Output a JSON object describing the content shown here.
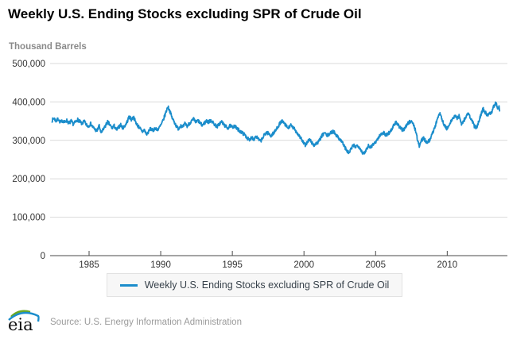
{
  "header": {
    "title": "Weekly U.S. Ending Stocks excluding SPR of Crude Oil",
    "units_label": "Thousand Barrels"
  },
  "legend": {
    "label": "Weekly U.S. Ending Stocks excluding SPR of Crude Oil",
    "swatch_color": "#1b8dcb"
  },
  "footer": {
    "logo": "eia",
    "source": "Source: U.S. Energy Information Administration"
  },
  "colors": {
    "line": "#1b8dcb",
    "gridline": "#d9d9d9",
    "axis": "#4a4a4a",
    "tick_text": "#333333"
  },
  "chart_data": {
    "type": "line",
    "title": "Weekly U.S. Ending Stocks excluding SPR of Crude Oil",
    "ylabel": "Thousand Barrels",
    "xlabel": "",
    "grid": true,
    "legend_position": "bottom-center",
    "x_range": [
      1982.28,
      2014.2
    ],
    "y_range": [
      0,
      500000
    ],
    "x_ticks": [
      {
        "v": 1985,
        "label": "1985"
      },
      {
        "v": 1990,
        "label": "1990"
      },
      {
        "v": 1995,
        "label": "1995"
      },
      {
        "v": 2000,
        "label": "2000"
      },
      {
        "v": 2005,
        "label": "2005"
      },
      {
        "v": 2010,
        "label": "2010"
      }
    ],
    "y_ticks": [
      {
        "v": 0,
        "label": "0"
      },
      {
        "v": 100000,
        "label": "100,000"
      },
      {
        "v": 200000,
        "label": "200,000"
      },
      {
        "v": 300000,
        "label": "300,000"
      },
      {
        "v": 400000,
        "label": "400,000"
      },
      {
        "v": 500000,
        "label": "500,000"
      }
    ],
    "series": [
      {
        "name": "Weekly U.S. Ending Stocks excluding SPR of Crude Oil",
        "color": "#1b8dcb",
        "jitter": {
          "seed": 7,
          "amplitude": 4500,
          "step_years": 0.019
        },
        "anchors": [
          [
            1982.42,
            352000.0
          ],
          [
            1982.55,
            358000.0
          ],
          [
            1982.7,
            350000.0
          ],
          [
            1982.85,
            356000.0
          ],
          [
            1983.0,
            346000.0
          ],
          [
            1983.15,
            352000.0
          ],
          [
            1983.3,
            347000.0
          ],
          [
            1983.45,
            352000.0
          ],
          [
            1983.6,
            344000.0
          ],
          [
            1983.75,
            350000.0
          ],
          [
            1983.9,
            342000.0
          ],
          [
            1984.05,
            348000.0
          ],
          [
            1984.2,
            354000.0
          ],
          [
            1984.35,
            349000.0
          ],
          [
            1984.5,
            343000.0
          ],
          [
            1984.65,
            350000.0
          ],
          [
            1984.8,
            341000.0
          ],
          [
            1984.95,
            336000.0
          ],
          [
            1985.1,
            344000.0
          ],
          [
            1985.25,
            335000.0
          ],
          [
            1985.4,
            329000.0
          ],
          [
            1985.55,
            324000.0
          ],
          [
            1985.7,
            338000.0
          ],
          [
            1985.85,
            318000.0
          ],
          [
            1986.0,
            330000.0
          ],
          [
            1986.15,
            338000.0
          ],
          [
            1986.3,
            348000.0
          ],
          [
            1986.45,
            340000.0
          ],
          [
            1986.6,
            332000.0
          ],
          [
            1986.75,
            338000.0
          ],
          [
            1986.9,
            327000.0
          ],
          [
            1987.05,
            333000.0
          ],
          [
            1987.2,
            341000.0
          ],
          [
            1987.35,
            332000.0
          ],
          [
            1987.5,
            338000.0
          ],
          [
            1987.65,
            348000.0
          ],
          [
            1987.8,
            362000.0
          ],
          [
            1987.95,
            354000.0
          ],
          [
            1988.1,
            361000.0
          ],
          [
            1988.25,
            348000.0
          ],
          [
            1988.4,
            338000.0
          ],
          [
            1988.55,
            332000.0
          ],
          [
            1988.7,
            321000.0
          ],
          [
            1988.85,
            328000.0
          ],
          [
            1989.0,
            316000.0
          ],
          [
            1989.15,
            322000.0
          ],
          [
            1989.3,
            331000.0
          ],
          [
            1989.45,
            325000.0
          ],
          [
            1989.6,
            332000.0
          ],
          [
            1989.75,
            327000.0
          ],
          [
            1989.9,
            333000.0
          ],
          [
            1990.05,
            342000.0
          ],
          [
            1990.2,
            355000.0
          ],
          [
            1990.35,
            372000.0
          ],
          [
            1990.5,
            388000.0
          ],
          [
            1990.65,
            375000.0
          ],
          [
            1990.8,
            358000.0
          ],
          [
            1990.95,
            348000.0
          ],
          [
            1991.1,
            336000.0
          ],
          [
            1991.25,
            330000.0
          ],
          [
            1991.4,
            340000.0
          ],
          [
            1991.55,
            334000.0
          ],
          [
            1991.7,
            344000.0
          ],
          [
            1991.85,
            337000.0
          ],
          [
            1992.0,
            344000.0
          ],
          [
            1992.15,
            350000.0
          ],
          [
            1992.3,
            355000.0
          ],
          [
            1992.45,
            347000.0
          ],
          [
            1992.6,
            352000.0
          ],
          [
            1992.75,
            345000.0
          ],
          [
            1992.9,
            339000.0
          ],
          [
            1993.05,
            345000.0
          ],
          [
            1993.2,
            351000.0
          ],
          [
            1993.35,
            347000.0
          ],
          [
            1993.5,
            353000.0
          ],
          [
            1993.65,
            346000.0
          ],
          [
            1993.8,
            340000.0
          ],
          [
            1993.95,
            336000.0
          ],
          [
            1994.1,
            343000.0
          ],
          [
            1994.25,
            349000.0
          ],
          [
            1994.4,
            341000.0
          ],
          [
            1994.55,
            336000.0
          ],
          [
            1994.7,
            332000.0
          ],
          [
            1994.85,
            338000.0
          ],
          [
            1995.0,
            334000.0
          ],
          [
            1995.15,
            338000.0
          ],
          [
            1995.3,
            331000.0
          ],
          [
            1995.45,
            327000.0
          ],
          [
            1995.6,
            322000.0
          ],
          [
            1995.75,
            318000.0
          ],
          [
            1995.9,
            313000.0
          ],
          [
            1996.05,
            306000.0
          ],
          [
            1996.2,
            299000.0
          ],
          [
            1996.35,
            309000.0
          ],
          [
            1996.5,
            303000.0
          ],
          [
            1996.65,
            311000.0
          ],
          [
            1996.8,
            304000.0
          ],
          [
            1996.95,
            297000.0
          ],
          [
            1997.1,
            305000.0
          ],
          [
            1997.25,
            315000.0
          ],
          [
            1997.4,
            321000.0
          ],
          [
            1997.55,
            317000.0
          ],
          [
            1997.7,
            312000.0
          ],
          [
            1997.85,
            318000.0
          ],
          [
            1998.0,
            324000.0
          ],
          [
            1998.15,
            334000.0
          ],
          [
            1998.3,
            343000.0
          ],
          [
            1998.45,
            350000.0
          ],
          [
            1998.6,
            345000.0
          ],
          [
            1998.75,
            338000.0
          ],
          [
            1998.9,
            331000.0
          ],
          [
            1999.05,
            340000.0
          ],
          [
            1999.2,
            334000.0
          ],
          [
            1999.35,
            329000.0
          ],
          [
            1999.5,
            321000.0
          ],
          [
            1999.65,
            313000.0
          ],
          [
            1999.8,
            305000.0
          ],
          [
            1999.95,
            294000.0
          ],
          [
            2000.1,
            287000.0
          ],
          [
            2000.25,
            297000.0
          ],
          [
            2000.4,
            302000.0
          ],
          [
            2000.55,
            294000.0
          ],
          [
            2000.7,
            287000.0
          ],
          [
            2000.85,
            292000.0
          ],
          [
            2001.0,
            295000.0
          ],
          [
            2001.15,
            305000.0
          ],
          [
            2001.3,
            314000.0
          ],
          [
            2001.45,
            320000.0
          ],
          [
            2001.6,
            312000.0
          ],
          [
            2001.75,
            316000.0
          ],
          [
            2001.9,
            320000.0
          ],
          [
            2002.05,
            324000.0
          ],
          [
            2002.2,
            317000.0
          ],
          [
            2002.35,
            309000.0
          ],
          [
            2002.5,
            303000.0
          ],
          [
            2002.65,
            297000.0
          ],
          [
            2002.8,
            286000.0
          ],
          [
            2003.0,
            272000.0
          ],
          [
            2003.15,
            267000.0
          ],
          [
            2003.3,
            279000.0
          ],
          [
            2003.45,
            287000.0
          ],
          [
            2003.6,
            283000.0
          ],
          [
            2003.75,
            288000.0
          ],
          [
            2003.9,
            280000.0
          ],
          [
            2004.05,
            270000.0
          ],
          [
            2004.2,
            264000.0
          ],
          [
            2004.35,
            277000.0
          ],
          [
            2004.5,
            287000.0
          ],
          [
            2004.65,
            282000.0
          ],
          [
            2004.8,
            289000.0
          ],
          [
            2004.95,
            294000.0
          ],
          [
            2005.1,
            301000.0
          ],
          [
            2005.25,
            310000.0
          ],
          [
            2005.4,
            317000.0
          ],
          [
            2005.55,
            321000.0
          ],
          [
            2005.7,
            313000.0
          ],
          [
            2005.85,
            317000.0
          ],
          [
            2006.0,
            322000.0
          ],
          [
            2006.15,
            330000.0
          ],
          [
            2006.3,
            341000.0
          ],
          [
            2006.45,
            347000.0
          ],
          [
            2006.6,
            338000.0
          ],
          [
            2006.75,
            331000.0
          ],
          [
            2006.9,
            326000.0
          ],
          [
            2007.05,
            333000.0
          ],
          [
            2007.2,
            342000.0
          ],
          [
            2007.35,
            348000.0
          ],
          [
            2007.5,
            351000.0
          ],
          [
            2007.65,
            340000.0
          ],
          [
            2007.8,
            325000.0
          ],
          [
            2007.95,
            297000.0
          ],
          [
            2008.05,
            285000.0
          ],
          [
            2008.2,
            300000.0
          ],
          [
            2008.35,
            306000.0
          ],
          [
            2008.5,
            298000.0
          ],
          [
            2008.65,
            295000.0
          ],
          [
            2008.8,
            303000.0
          ],
          [
            2008.95,
            316000.0
          ],
          [
            2009.1,
            332000.0
          ],
          [
            2009.25,
            347000.0
          ],
          [
            2009.4,
            366000.0
          ],
          [
            2009.5,
            372000.0
          ],
          [
            2009.65,
            352000.0
          ],
          [
            2009.8,
            340000.0
          ],
          [
            2009.95,
            330000.0
          ],
          [
            2010.1,
            336000.0
          ],
          [
            2010.25,
            348000.0
          ],
          [
            2010.4,
            358000.0
          ],
          [
            2010.55,
            364000.0
          ],
          [
            2010.7,
            357000.0
          ],
          [
            2010.85,
            364000.0
          ],
          [
            2011.0,
            342000.0
          ],
          [
            2011.15,
            350000.0
          ],
          [
            2011.3,
            362000.0
          ],
          [
            2011.45,
            370000.0
          ],
          [
            2011.6,
            359000.0
          ],
          [
            2011.75,
            350000.0
          ],
          [
            2011.9,
            336000.0
          ],
          [
            2012.05,
            333000.0
          ],
          [
            2012.2,
            350000.0
          ],
          [
            2012.35,
            367000.0
          ],
          [
            2012.5,
            382000.0
          ],
          [
            2012.65,
            373000.0
          ],
          [
            2012.8,
            366000.0
          ],
          [
            2012.95,
            371000.0
          ],
          [
            2013.1,
            373000.0
          ],
          [
            2013.2,
            385000.0
          ],
          [
            2013.3,
            393000.0
          ],
          [
            2013.4,
            398000.0
          ],
          [
            2013.48,
            387000.0
          ],
          [
            2013.55,
            381000.0
          ],
          [
            2013.62,
            391000.0
          ],
          [
            2013.67,
            372000.0
          ]
        ]
      }
    ]
  }
}
